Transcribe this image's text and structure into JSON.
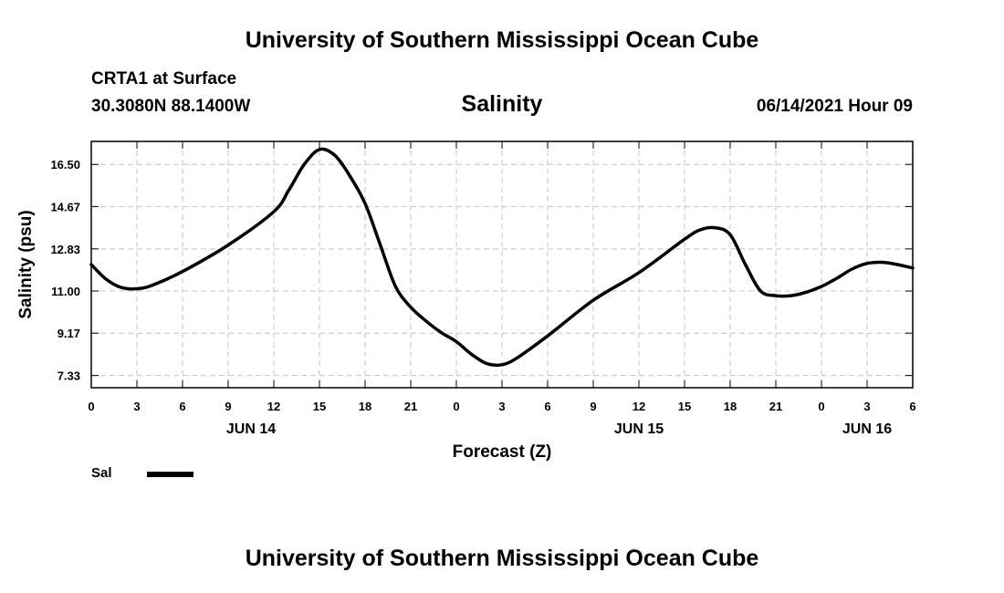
{
  "header": {
    "organization": "University of Southern Mississippi Ocean Cube",
    "station": "CRTA1 at Surface",
    "coordinates": "30.3080N  88.1400W",
    "datetime": "06/14/2021 Hour 09"
  },
  "footer": {
    "organization": "University of Southern Mississippi Ocean Cube"
  },
  "legend": {
    "label": "Sal"
  },
  "chart_data": {
    "type": "line",
    "title": "Salinity",
    "xlabel": "Forecast (Z)",
    "ylabel": "Salinity (psu)",
    "xlim": [
      0,
      54
    ],
    "ylim": [
      6.8,
      17.5
    ],
    "grid": true,
    "x_ticks": [
      0,
      3,
      6,
      9,
      12,
      15,
      18,
      21,
      24,
      27,
      30,
      33,
      36,
      39,
      42,
      45,
      48,
      51,
      54
    ],
    "x_tick_labels": [
      "0",
      "3",
      "6",
      "9",
      "12",
      "15",
      "18",
      "21",
      "0",
      "3",
      "6",
      "9",
      "12",
      "15",
      "18",
      "21",
      "0",
      "3",
      "6"
    ],
    "y_ticks": [
      7.33,
      9.17,
      11.0,
      12.83,
      14.67,
      16.5
    ],
    "y_tick_labels": [
      "7.33",
      "9.17",
      "11.00",
      "12.83",
      "14.67",
      "16.50"
    ],
    "date_labels": [
      {
        "x": 10.5,
        "label": "JUN 14"
      },
      {
        "x": 36,
        "label": "JUN 15"
      },
      {
        "x": 51,
        "label": "JUN 16"
      }
    ],
    "series": [
      {
        "name": "Sal",
        "x": [
          0,
          1,
          2,
          3,
          4,
          6,
          9,
          12,
          13,
          14,
          15,
          16,
          17,
          18,
          19,
          20,
          21,
          22,
          23,
          24,
          25,
          26,
          27,
          28,
          30,
          33,
          36,
          39,
          40,
          41,
          42,
          43,
          44,
          45,
          46,
          47,
          48,
          49,
          50,
          51,
          52,
          53,
          54
        ],
        "y": [
          12.15,
          11.5,
          11.15,
          11.1,
          11.25,
          11.85,
          13.0,
          14.45,
          15.4,
          16.5,
          17.15,
          16.9,
          16.0,
          14.8,
          13.0,
          11.2,
          10.3,
          9.7,
          9.2,
          8.8,
          8.25,
          7.85,
          7.8,
          8.1,
          9.05,
          10.6,
          11.8,
          13.25,
          13.65,
          13.75,
          13.45,
          12.15,
          11.0,
          10.8,
          10.8,
          10.95,
          11.2,
          11.55,
          11.95,
          12.2,
          12.25,
          12.15,
          12.0
        ]
      }
    ]
  }
}
